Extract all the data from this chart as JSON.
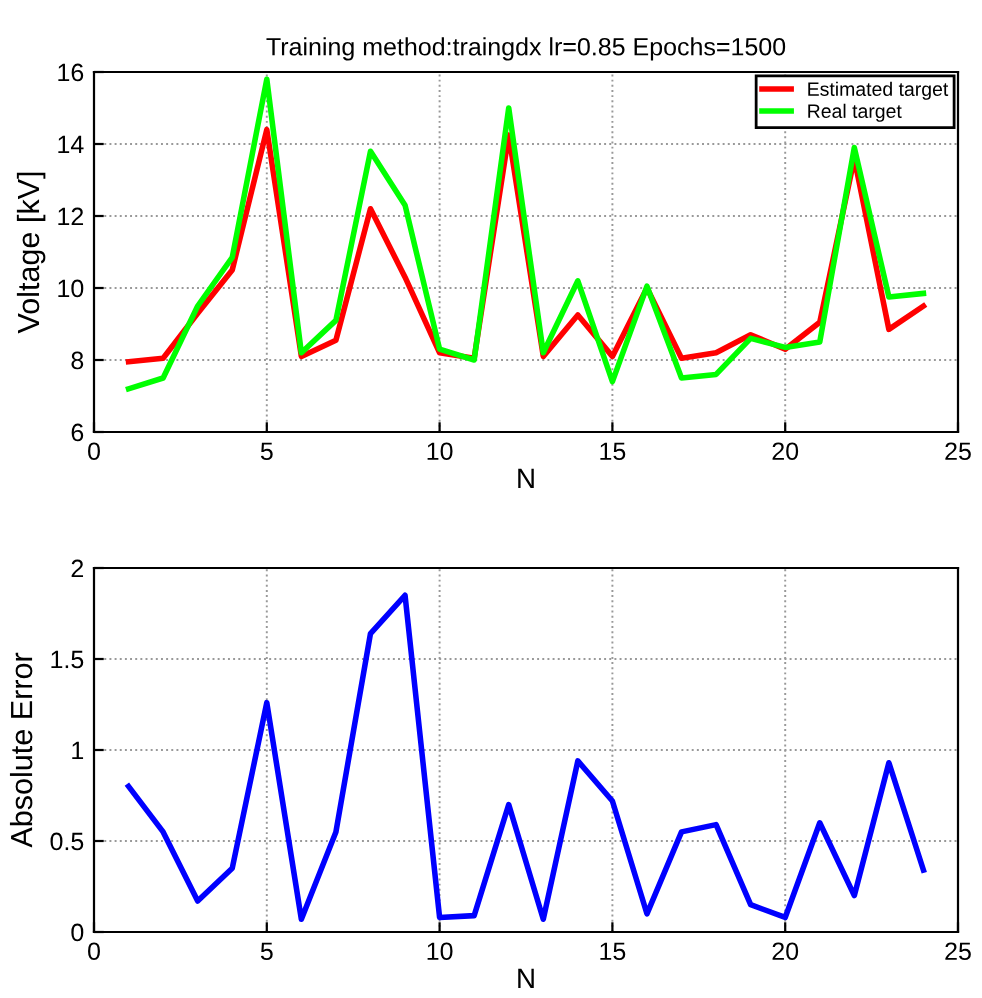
{
  "chart_data": [
    {
      "type": "line",
      "title": "Training method:traingdx lr=0.85 Epochs=1500",
      "xlabel": "N",
      "ylabel": "Voltage [kV]",
      "x": [
        1,
        2,
        3,
        4,
        5,
        6,
        7,
        8,
        9,
        10,
        11,
        12,
        13,
        14,
        15,
        16,
        17,
        18,
        19,
        20,
        21,
        22,
        23,
        24
      ],
      "series": [
        {
          "name": "Estimated target",
          "color": "#ff0000",
          "values": [
            7.95,
            8.05,
            9.3,
            10.5,
            14.4,
            8.1,
            8.55,
            12.2,
            10.3,
            8.2,
            8.05,
            14.25,
            8.1,
            9.25,
            8.1,
            10.0,
            8.05,
            8.2,
            8.7,
            8.3,
            9.05,
            13.6,
            8.85,
            9.5
          ]
        },
        {
          "name": "Real target",
          "color": "#00ff00",
          "values": [
            7.2,
            7.5,
            9.5,
            10.85,
            15.8,
            8.2,
            9.1,
            13.8,
            12.3,
            8.3,
            8.0,
            15.0,
            8.2,
            10.2,
            7.4,
            10.05,
            7.5,
            7.6,
            8.6,
            8.35,
            8.5,
            13.9,
            9.75,
            9.85
          ]
        }
      ],
      "xlim": [
        0,
        25
      ],
      "xticks": [
        0,
        5,
        10,
        15,
        20,
        25
      ],
      "ylim": [
        6,
        16
      ],
      "yticks": [
        6,
        8,
        10,
        12,
        14,
        16
      ],
      "grid": true,
      "legend": "top right"
    },
    {
      "type": "line",
      "xlabel": "N",
      "ylabel": "Absolute Error",
      "x": [
        1,
        2,
        3,
        4,
        5,
        6,
        7,
        8,
        9,
        10,
        11,
        12,
        13,
        14,
        15,
        16,
        17,
        18,
        19,
        20,
        21,
        22,
        23,
        24
      ],
      "series": [
        {
          "color": "#0000ff",
          "values": [
            0.8,
            0.55,
            0.17,
            0.35,
            1.26,
            0.07,
            0.55,
            1.64,
            1.85,
            0.08,
            0.09,
            0.7,
            0.07,
            0.94,
            0.72,
            0.1,
            0.55,
            0.59,
            0.15,
            0.08,
            0.6,
            0.2,
            0.93,
            0.34
          ]
        }
      ],
      "xlim": [
        0,
        25
      ],
      "xticks": [
        0,
        5,
        10,
        15,
        20,
        25
      ],
      "ylim": [
        0,
        2
      ],
      "yticks": [
        0,
        0.5,
        1,
        1.5,
        2
      ],
      "grid": true
    }
  ]
}
